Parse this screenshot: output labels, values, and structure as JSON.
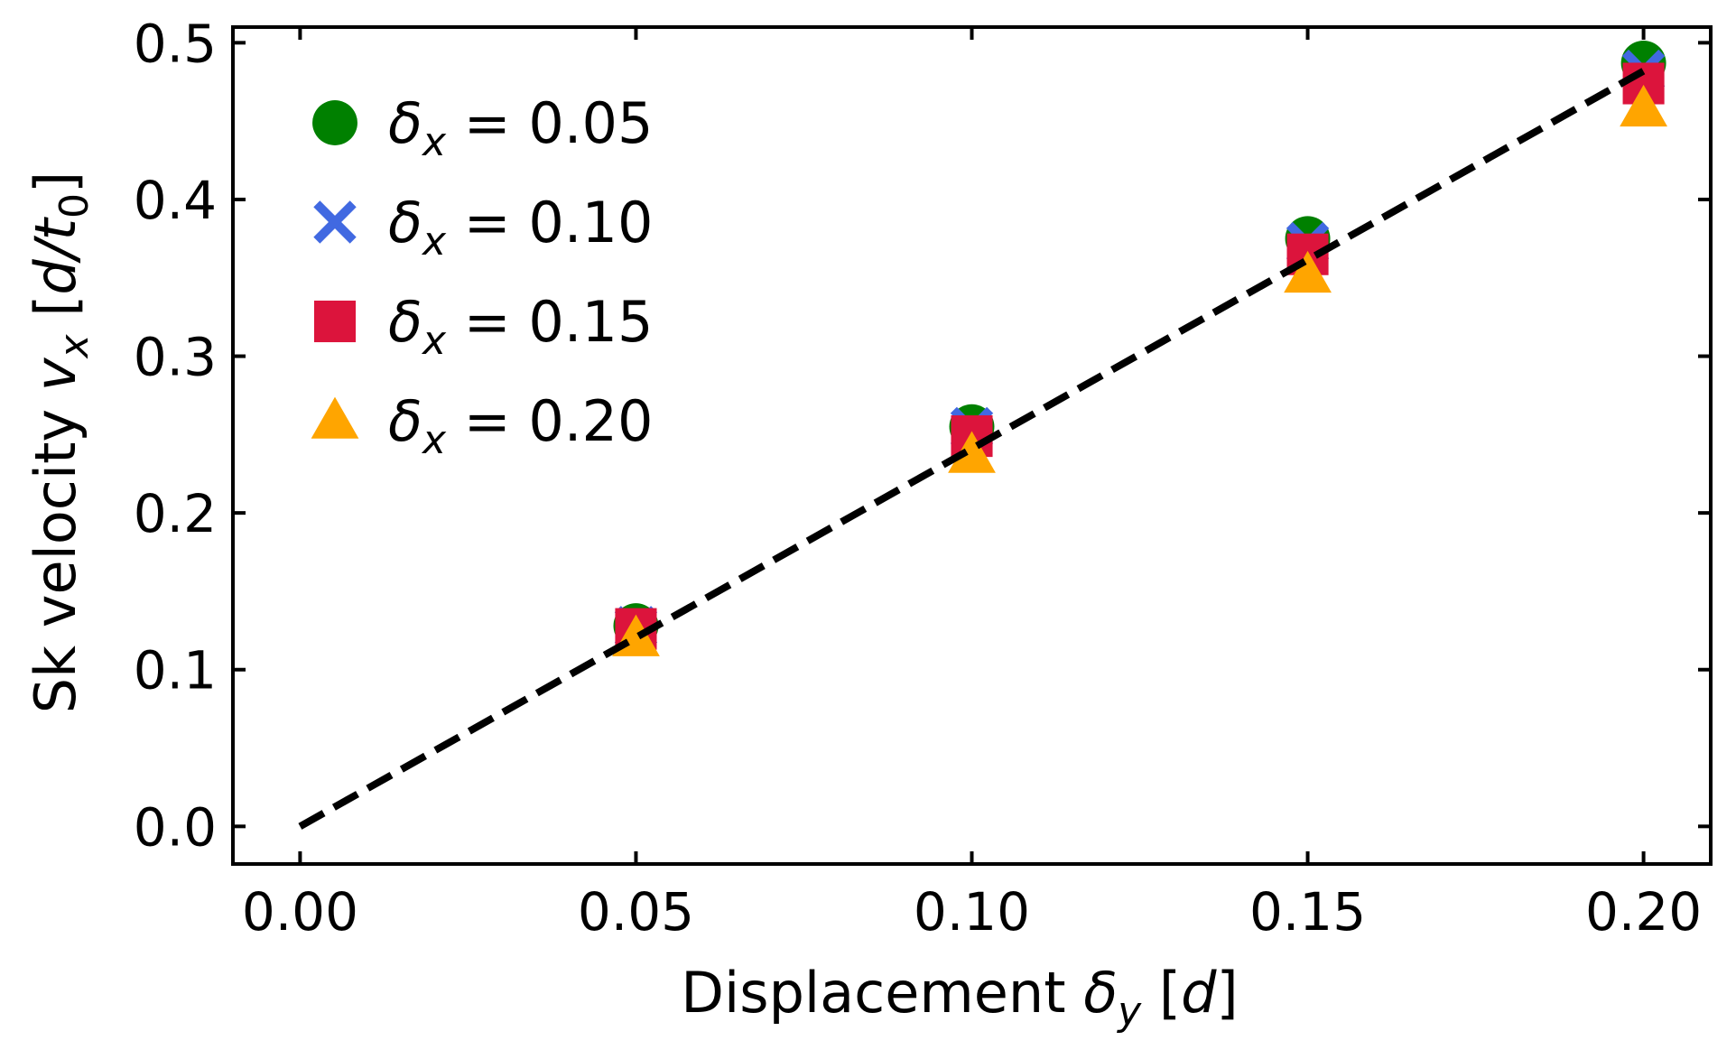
{
  "chart_data": {
    "type": "scatter",
    "title": "",
    "xlabel": "Displacement δy [d]",
    "ylabel": "Sk velocity vx [d/t0]",
    "xlabel_parts": {
      "text": "Displacement ",
      "sym": "δ",
      "sub": "y",
      "unit_open": " [",
      "unit": "d",
      "unit_close": "]"
    },
    "ylabel_parts": {
      "text": "Sk velocity ",
      "sym": "v",
      "sub": "x",
      "unit_open": " [",
      "unit": "d/t",
      "unit_sub": "0",
      "unit_close": "]"
    },
    "xlim": [
      -0.01,
      0.21
    ],
    "ylim": [
      -0.024,
      0.51
    ],
    "xticks": [
      0.0,
      0.05,
      0.1,
      0.15,
      0.2
    ],
    "xtick_labels": [
      "0.00",
      "0.05",
      "0.10",
      "0.15",
      "0.20"
    ],
    "yticks": [
      0.0,
      0.1,
      0.2,
      0.3,
      0.4,
      0.5
    ],
    "ytick_labels": [
      "0.0",
      "0.1",
      "0.2",
      "0.3",
      "0.4",
      "0.5"
    ],
    "grid": false,
    "legend_position": "upper-left",
    "series": [
      {
        "name": "δx = 0.05",
        "label_sym": "δ",
        "label_sub": "x",
        "label_val": " = 0.05",
        "marker": "circle",
        "color": "#008000",
        "x": [
          0.05,
          0.1,
          0.15,
          0.2
        ],
        "y": [
          0.128,
          0.255,
          0.375,
          0.487
        ]
      },
      {
        "name": "δx = 0.10",
        "label_sym": "δ",
        "label_sub": "x",
        "label_val": " = 0.10",
        "marker": "x",
        "color": "#4169e1",
        "x": [
          0.05,
          0.1,
          0.15,
          0.2
        ],
        "y": [
          0.127,
          0.254,
          0.372,
          0.482
        ]
      },
      {
        "name": "δx = 0.15",
        "label_sym": "δ",
        "label_sub": "x",
        "label_val": " = 0.15",
        "marker": "square",
        "color": "#dc143c",
        "x": [
          0.05,
          0.1,
          0.15,
          0.2
        ],
        "y": [
          0.126,
          0.249,
          0.365,
          0.474
        ]
      },
      {
        "name": "δx = 0.20",
        "label_sym": "δ",
        "label_sub": "x",
        "label_val": " = 0.20",
        "marker": "triangle",
        "color": "#ffa500",
        "x": [
          0.05,
          0.1,
          0.15,
          0.2
        ],
        "y": [
          0.12,
          0.237,
          0.352,
          0.458
        ]
      }
    ],
    "fit_line": {
      "name": "linear-fit",
      "style": "dashed",
      "color": "#000000",
      "x": [
        0.0,
        0.2
      ],
      "y": [
        0.0,
        0.482
      ]
    }
  }
}
